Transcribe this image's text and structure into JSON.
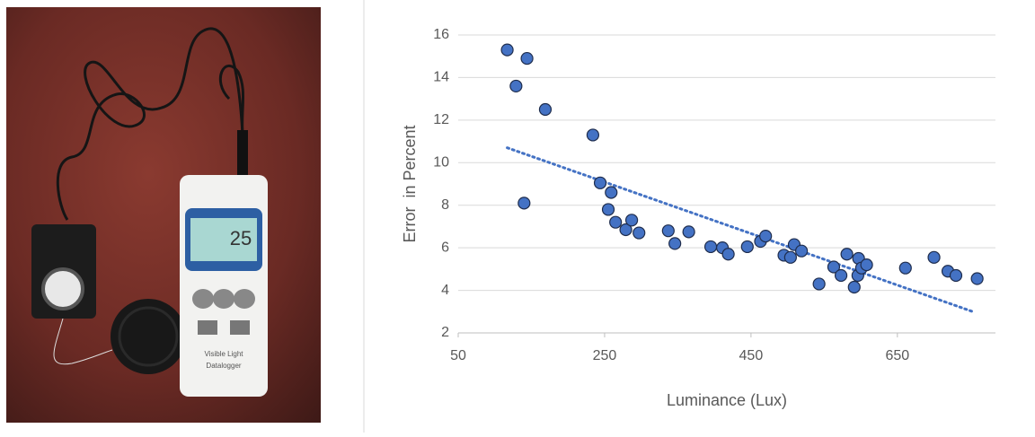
{
  "photo": {
    "display": "25",
    "label": "Visible Light",
    "sublabel": "Datalogger"
  },
  "chart_data": {
    "type": "scatter",
    "xlabel": "Luminance (Lux)",
    "ylabel": "Error  in Percent",
    "xlim": [
      50,
      784
    ],
    "xticks": [
      50,
      250,
      450,
      650
    ],
    "ylim": [
      2,
      16
    ],
    "yticks": [
      2,
      4,
      6,
      8,
      10,
      12,
      14,
      16
    ],
    "grid": true,
    "color": "#4472c4",
    "x": [
      117,
      129,
      144,
      140,
      169,
      234,
      244,
      259,
      255,
      265,
      279,
      287,
      297,
      337,
      346,
      365,
      395,
      411,
      419,
      445,
      463,
      470,
      495,
      504,
      509,
      519,
      543,
      563,
      573,
      581,
      591,
      596,
      597,
      601,
      608,
      661,
      700,
      719,
      730,
      759
    ],
    "values": [
      15.3,
      13.6,
      14.9,
      8.1,
      12.5,
      11.3,
      9.05,
      8.6,
      7.8,
      7.2,
      6.85,
      7.3,
      6.7,
      6.8,
      6.2,
      6.75,
      6.05,
      6.0,
      5.7,
      6.05,
      6.3,
      6.55,
      5.65,
      5.55,
      6.15,
      5.85,
      4.3,
      5.1,
      4.7,
      5.7,
      4.15,
      4.7,
      5.5,
      5.05,
      5.2,
      5.05,
      5.55,
      4.9,
      4.7,
      4.55
    ],
    "trendline": {
      "x": [
        117,
        753
      ],
      "values": [
        10.7,
        3.0
      ],
      "color": "#4472c4"
    }
  }
}
